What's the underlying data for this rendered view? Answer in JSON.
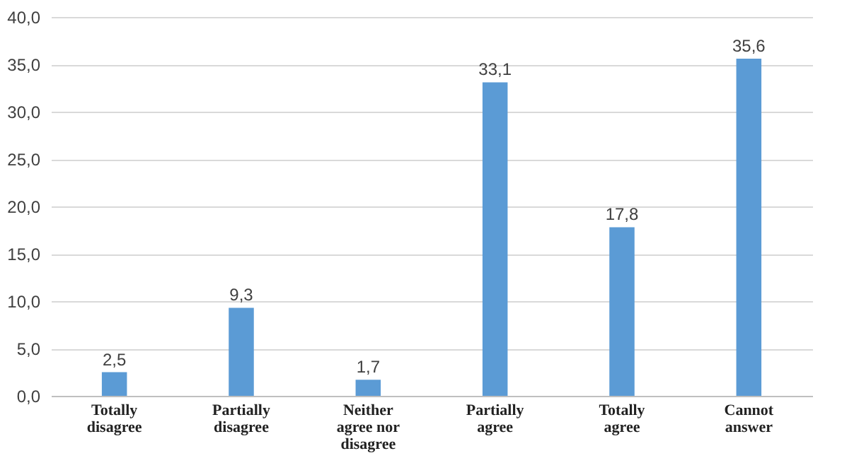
{
  "chart_data": {
    "type": "bar",
    "categories": [
      "Totally disagree",
      "Partially disagree",
      "Neither agree nor disagree",
      "Partially agree",
      "Totally agree",
      "Cannot answer"
    ],
    "values": [
      2.5,
      9.3,
      1.7,
      33.1,
      17.8,
      35.6
    ],
    "value_labels": [
      "2,5",
      "9,3",
      "1,7",
      "33,1",
      "17,8",
      "35,6"
    ],
    "color": "#5b9bd5",
    "ylim": [
      0,
      40
    ],
    "yticks": [
      {
        "value": 0,
        "label": "0,0"
      },
      {
        "value": 5,
        "label": "5,0"
      },
      {
        "value": 10,
        "label": "10,0"
      },
      {
        "value": 15,
        "label": "15,0"
      },
      {
        "value": 20,
        "label": "20,0"
      },
      {
        "value": 25,
        "label": "25,0"
      },
      {
        "value": 30,
        "label": "30,0"
      },
      {
        "value": 35,
        "label": "35,0"
      },
      {
        "value": 40,
        "label": "40,0"
      }
    ],
    "grid": true
  }
}
